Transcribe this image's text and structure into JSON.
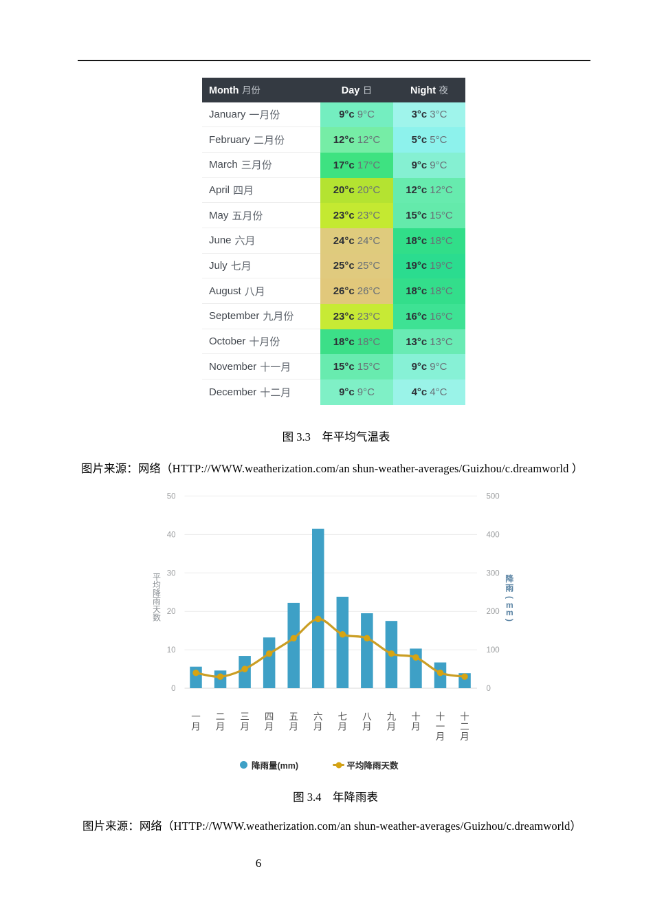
{
  "page_number": "6",
  "temperature_table": {
    "caption": "图 3.3　年平均气温表",
    "source": "图片来源：网络（HTTP://WWW.weatherization.com/an shun-weather-averages/Guizhou/c.dreamworld ）",
    "header": {
      "month_en": "Month",
      "month_zh": "月份",
      "day_en": "Day",
      "day_zh": "日",
      "night_en": "Night",
      "night_zh": "夜"
    },
    "header_bg": "#343a42",
    "rows": [
      {
        "month_en": "January",
        "month_zh": "一月份",
        "day": "9°c",
        "day_t": "9°C",
        "day_color": "#74eec0",
        "night": "3°c",
        "night_t": "3°C",
        "night_color": "#9ff4eb"
      },
      {
        "month_en": "February",
        "month_zh": "二月份",
        "day": "12°c",
        "day_t": "12°C",
        "day_color": "#76eda6",
        "night": "5°c",
        "night_t": "5°C",
        "night_color": "#8df2ec"
      },
      {
        "month_en": "March",
        "month_zh": "三月份",
        "day": "17°c",
        "day_t": "17°C",
        "day_color": "#3ee281",
        "night": "9°c",
        "night_t": "9°C",
        "night_color": "#85f0d2"
      },
      {
        "month_en": "April",
        "month_zh": "四月",
        "day": "20°c",
        "day_t": "20°C",
        "day_color": "#b4e331",
        "night": "12°c",
        "night_t": "12°C",
        "night_color": "#67ebae"
      },
      {
        "month_en": "May",
        "month_zh": "五月份",
        "day": "23°c",
        "day_t": "23°C",
        "day_color": "#c4e931",
        "night": "15°c",
        "night_t": "15°C",
        "night_color": "#64eaab"
      },
      {
        "month_en": "June",
        "month_zh": "六月",
        "day": "24°c",
        "day_t": "24°C",
        "day_color": "#dfcb7d",
        "night": "18°c",
        "night_t": "18°C",
        "night_color": "#31de89"
      },
      {
        "month_en": "July",
        "month_zh": "七月",
        "day": "25°c",
        "day_t": "25°C",
        "day_color": "#e0ca7e",
        "night": "19°c",
        "night_t": "19°C",
        "night_color": "#2bdc8f"
      },
      {
        "month_en": "August",
        "month_zh": "八月",
        "day": "26°c",
        "day_t": "26°C",
        "day_color": "#e1c87b",
        "night": "18°c",
        "night_t": "18°C",
        "night_color": "#33de8b"
      },
      {
        "month_en": "September",
        "month_zh": "九月份",
        "day": "23°c",
        "day_t": "23°C",
        "day_color": "#c7ea35",
        "night": "16°c",
        "night_t": "16°C",
        "night_color": "#3ee294"
      },
      {
        "month_en": "October",
        "month_zh": "十月份",
        "day": "18°c",
        "day_t": "18°C",
        "day_color": "#3cdf88",
        "night": "13°c",
        "night_t": "13°C",
        "night_color": "#69ebb4"
      },
      {
        "month_en": "November",
        "month_zh": "十一月",
        "day": "15°c",
        "day_t": "15°C",
        "day_color": "#68ebaf",
        "night": "9°c",
        "night_t": "9°C",
        "night_color": "#87f1d6"
      },
      {
        "month_en": "December",
        "month_zh": "十二月",
        "day": "9°c",
        "day_t": "9°C",
        "day_color": "#7ff0c6",
        "night": "4°c",
        "night_t": "4°C",
        "night_color": "#9af3e8"
      }
    ]
  },
  "rain_chart": {
    "caption": "图 3.4　年降雨表",
    "source": "图片来源：网络（HTTP://WWW.weatherization.com/an shun-weather-averages/Guizhou/c.dreamworld）"
  },
  "chart_data": {
    "type": "bar+line",
    "categories": [
      "一月",
      "二月",
      "三月",
      "四月",
      "五月",
      "六月",
      "七月",
      "八月",
      "九月",
      "十月",
      "十一月",
      "十二月"
    ],
    "series": [
      {
        "name": "降雨量(mm)",
        "type": "bar",
        "axis": "right",
        "color": "#3ea0c6",
        "values": [
          56,
          46,
          84,
          132,
          222,
          415,
          238,
          195,
          175,
          103,
          67,
          39
        ]
      },
      {
        "name": "平均降雨天数",
        "type": "line",
        "axis": "left",
        "color": "#ca9e24",
        "marker_color": "#d7a411",
        "values": [
          4,
          3,
          5,
          9,
          13,
          18,
          14,
          13,
          9,
          8,
          4,
          3
        ]
      }
    ],
    "left_axis": {
      "title": "平均降雨天数",
      "ticks": [
        0,
        10,
        20,
        30,
        40,
        50
      ],
      "range": [
        0,
        50
      ],
      "title_color": "#8a8f94",
      "tick_color": "#9a9c9e"
    },
    "right_axis": {
      "title": "降雨(mm)",
      "ticks": [
        0,
        100,
        200,
        300,
        400,
        500
      ],
      "range": [
        0,
        500
      ],
      "title_color": "#5b84a4",
      "tick_color": "#9a9c9e"
    },
    "grid": true,
    "legend_position": "bottom",
    "x_label_color": "#555555"
  }
}
